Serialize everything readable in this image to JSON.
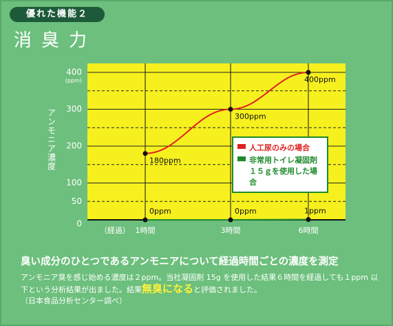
{
  "header": {
    "badge": "優れた機能２",
    "title": "消臭力"
  },
  "chart_data": {
    "type": "line",
    "y_label": "アンモニア濃度",
    "y_unit": "(ppm)",
    "x_label": "（経過）",
    "categories": [
      "1時間",
      "3時間",
      "6時間"
    ],
    "series": [
      {
        "name": "人工尿のみの場合",
        "color": "#e02020",
        "values": [
          180,
          300,
          400
        ],
        "value_labels": [
          "180ppm",
          "300ppm",
          "400ppm"
        ]
      },
      {
        "name": "非常用トイレ凝固剤１５ｇを使用した場合",
        "color": "#1e8a2a",
        "values": [
          0,
          0,
          1
        ],
        "value_labels": [
          "0ppm",
          "0ppm",
          "1ppm"
        ]
      }
    ],
    "ylim": [
      0,
      400
    ],
    "yticks": [
      0,
      50,
      100,
      200,
      300,
      400
    ],
    "minor_grid": [
      150,
      250,
      350
    ],
    "grid": true
  },
  "description": {
    "headline": "臭い成分のひとつであるアンモニアについて経過時間ごとの濃度を測定",
    "text_before": "アンモニア臭を感じ始める濃度は２ppm。当社凝固剤 15g を使用した結果６時間を経過しても１ppm 以下という分析結果が出ました。結果",
    "highlight": "無臭になる",
    "text_after": "と評価されました。",
    "source": "（日本食品分析センター調べ）"
  }
}
